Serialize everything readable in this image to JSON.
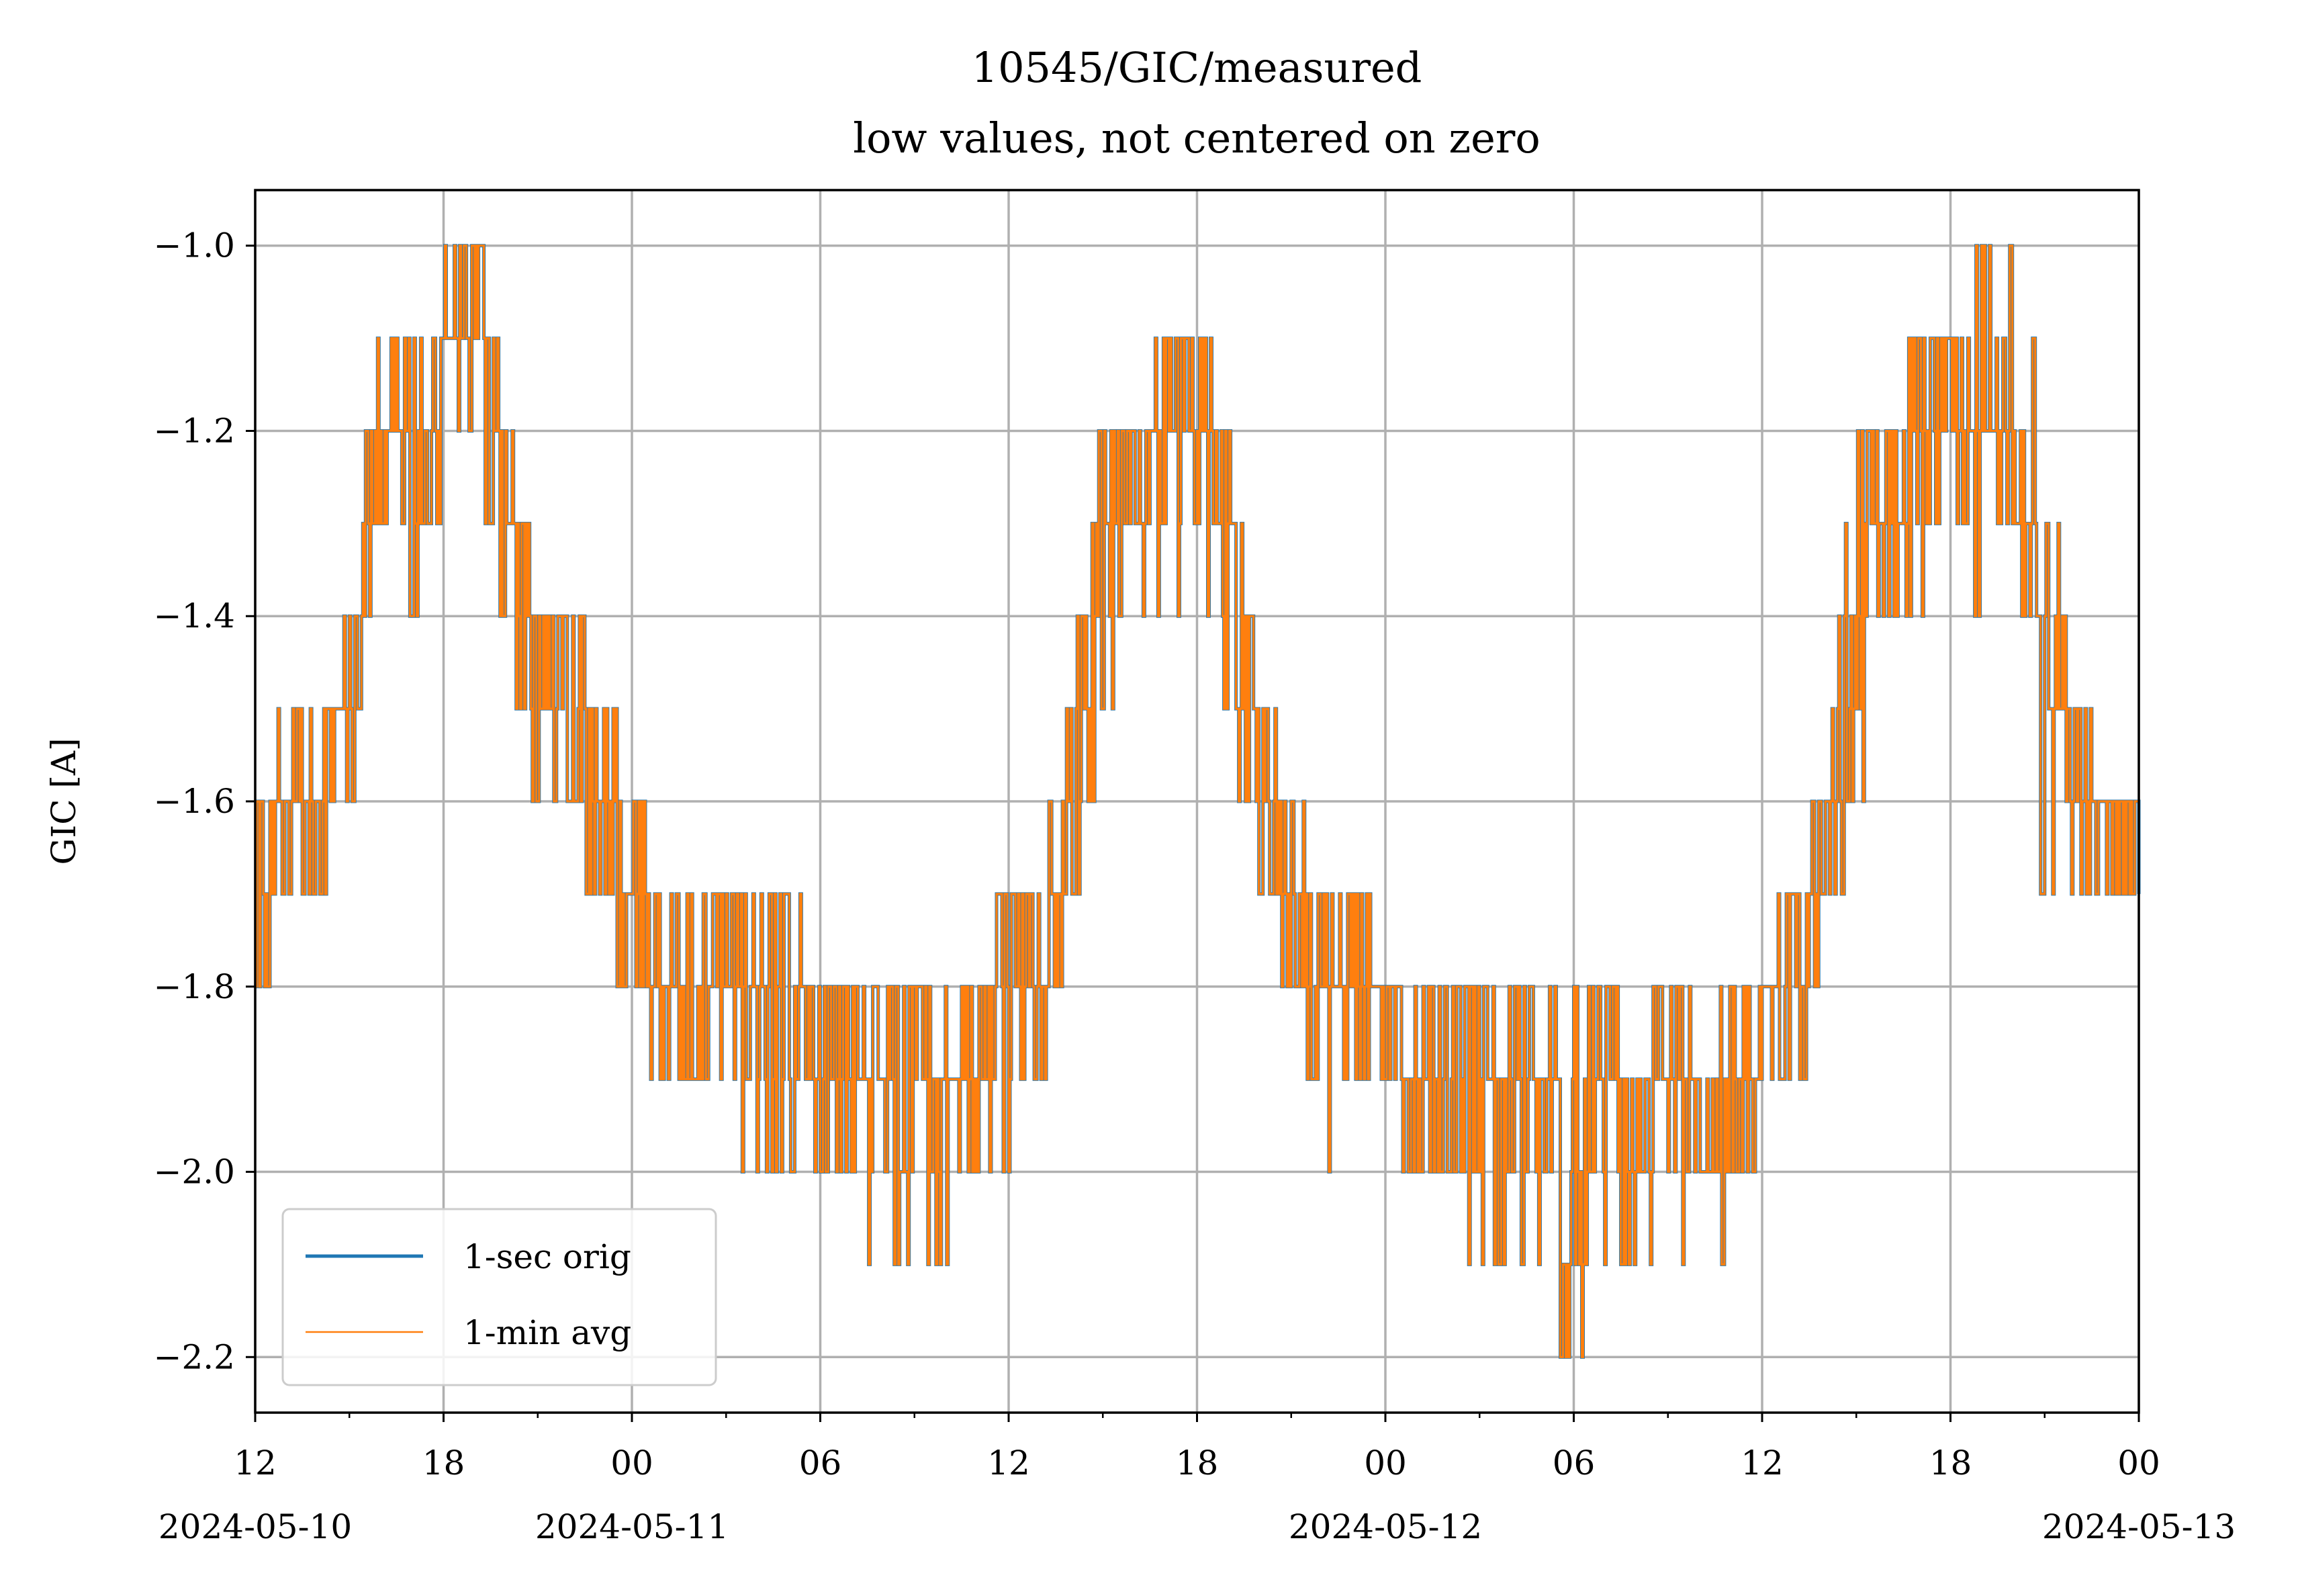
{
  "chart_data": {
    "type": "line",
    "title": "10545/GIC/measured",
    "subtitle": "low values, not centered on zero",
    "xlabel": "",
    "ylabel": "GIC [A]",
    "ylim": [
      -2.26,
      -0.94
    ],
    "xlim_hours": [
      0,
      60
    ],
    "x_reference": "2024-05-10 12:00",
    "grid": true,
    "legend_position": "lower-left",
    "y_ticks": [
      {
        "value": -1.0,
        "label": "−1.0"
      },
      {
        "value": -1.2,
        "label": "−1.2"
      },
      {
        "value": -1.4,
        "label": "−1.4"
      },
      {
        "value": -1.6,
        "label": "−1.6"
      },
      {
        "value": -1.8,
        "label": "−1.8"
      },
      {
        "value": -2.0,
        "label": "−2.0"
      },
      {
        "value": -2.2,
        "label": "−2.2"
      }
    ],
    "x_ticks": [
      {
        "hour": 0,
        "label": "12",
        "date": "2024-05-10"
      },
      {
        "hour": 6,
        "label": "18",
        "date": ""
      },
      {
        "hour": 12,
        "label": "00",
        "date": "2024-05-11"
      },
      {
        "hour": 18,
        "label": "06",
        "date": ""
      },
      {
        "hour": 24,
        "label": "12",
        "date": ""
      },
      {
        "hour": 30,
        "label": "18",
        "date": ""
      },
      {
        "hour": 36,
        "label": "00",
        "date": "2024-05-12"
      },
      {
        "hour": 42,
        "label": "06",
        "date": ""
      },
      {
        "hour": 48,
        "label": "12",
        "date": ""
      },
      {
        "hour": 54,
        "label": "18",
        "date": ""
      },
      {
        "hour": 60,
        "label": "00",
        "date": "2024-05-13"
      }
    ],
    "x_minor_ticks_hours": [
      3,
      9,
      15,
      21,
      27,
      33,
      39,
      45,
      51,
      57
    ],
    "series_colors": {
      "orig": "#1f77b4",
      "avg": "#ff7f0e"
    },
    "series": [
      {
        "name": "1-sec orig",
        "color": "#1f77b4",
        "envelope_hours": [
          0,
          1,
          2,
          2.5,
          3,
          4,
          5.5,
          6,
          7,
          8,
          9,
          10,
          11,
          12,
          13,
          14,
          15,
          16,
          17,
          18,
          19,
          20,
          21,
          22,
          23,
          24,
          25,
          26,
          27,
          28,
          29,
          30,
          31,
          32,
          33,
          34,
          35,
          36,
          37,
          38,
          39,
          40,
          41,
          42,
          43,
          44,
          45,
          46,
          47,
          48,
          49,
          50,
          51,
          52,
          53,
          54,
          55,
          56,
          57,
          58,
          59,
          60
        ],
        "upper": [
          -1.6,
          -1.5,
          -1.5,
          -1.5,
          -1.4,
          -1.1,
          -1.1,
          -1.0,
          -1.0,
          -1.2,
          -1.4,
          -1.4,
          -1.5,
          -1.6,
          -1.7,
          -1.7,
          -1.7,
          -1.7,
          -1.7,
          -1.8,
          -1.8,
          -1.8,
          -1.8,
          -1.8,
          -1.8,
          -1.7,
          -1.7,
          -1.5,
          -1.2,
          -1.2,
          -1.1,
          -1.1,
          -1.2,
          -1.5,
          -1.6,
          -1.7,
          -1.7,
          -1.8,
          -1.8,
          -1.8,
          -1.8,
          -1.8,
          -1.8,
          -1.8,
          -1.8,
          -1.9,
          -1.8,
          -1.8,
          -1.8,
          -1.8,
          -1.7,
          -1.6,
          -1.2,
          -1.2,
          -1.1,
          -1.1,
          -1.0,
          -1.0,
          -1.2,
          -1.5,
          -1.6,
          -1.6
        ],
        "lower": [
          -1.8,
          -1.7,
          -1.7,
          -1.6,
          -1.6,
          -1.3,
          -1.4,
          -1.2,
          -1.2,
          -1.4,
          -1.6,
          -1.6,
          -1.7,
          -1.8,
          -1.9,
          -1.9,
          -1.9,
          -2.0,
          -2.0,
          -2.0,
          -2.0,
          -2.1,
          -2.1,
          -2.1,
          -2.0,
          -2.0,
          -1.9,
          -1.7,
          -1.5,
          -1.4,
          -1.4,
          -1.3,
          -1.5,
          -1.7,
          -1.8,
          -2.0,
          -1.9,
          -1.9,
          -2.0,
          -2.0,
          -2.1,
          -2.1,
          -2.1,
          -2.2,
          -2.1,
          -2.1,
          -2.1,
          -2.0,
          -2.1,
          -1.9,
          -1.9,
          -1.8,
          -1.6,
          -1.4,
          -1.4,
          -1.3,
          -1.4,
          -1.6,
          -1.7,
          -1.7,
          -1.7,
          -1.7
        ]
      },
      {
        "name": "1-min avg",
        "color": "#ff7f0e",
        "note": "overlays the 1-sec series"
      }
    ]
  }
}
